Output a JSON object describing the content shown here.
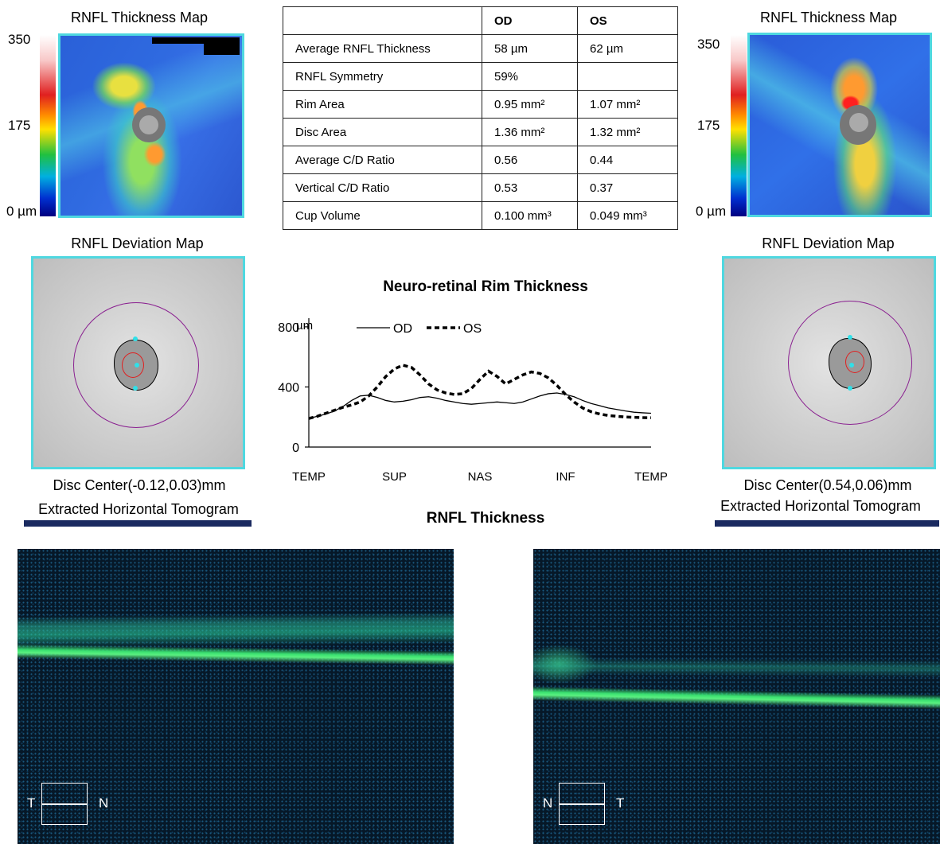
{
  "od": {
    "thickness_title": "RNFL Thickness Map",
    "scale_max": "350",
    "scale_mid": "175",
    "scale_min": "0 µm",
    "deviation_title": "RNFL Deviation Map",
    "disc_center": "Disc Center(-0.12,0.03)mm",
    "tomogram_title": "Extracted Horizontal Tomogram",
    "orient_left": "T",
    "orient_right": "N"
  },
  "os": {
    "thickness_title": "RNFL Thickness Map",
    "scale_max": "350",
    "scale_mid": "175",
    "scale_min": "0 µm",
    "deviation_title": "RNFL Deviation Map",
    "disc_center": "Disc Center(0.54,0.06)mm",
    "tomogram_title": "Extracted Horizontal Tomogram",
    "orient_left": "N",
    "orient_right": "T"
  },
  "table": {
    "headers": [
      "",
      "OD",
      "OS"
    ],
    "rows": [
      {
        "label": "Average RNFL Thickness",
        "od": "58 µm",
        "os": "62 µm"
      },
      {
        "label": "RNFL Symmetry",
        "od": "59%",
        "os": ""
      },
      {
        "label": "Rim Area",
        "od": "0.95 mm²",
        "os": "1.07 mm²"
      },
      {
        "label": "Disc Area",
        "od": "1.36 mm²",
        "os": "1.32 mm²"
      },
      {
        "label": "Average C/D Ratio",
        "od": "0.56",
        "os": "0.44"
      },
      {
        "label": "Vertical C/D Ratio",
        "od": "0.53",
        "os": "0.37"
      },
      {
        "label": "Cup Volume",
        "od": "0.100 mm³",
        "os": "0.049 mm³"
      }
    ]
  },
  "rim_chart_title": "Neuro-retinal Rim Thickness",
  "rnfl_thickness_title": "RNFL Thickness",
  "chart_data": {
    "type": "line",
    "title": "Neuro-retinal Rim Thickness",
    "ylabel": "µm",
    "xlabel": "",
    "ylim": [
      0,
      900
    ],
    "yticks": [
      "800",
      "400",
      "0"
    ],
    "ytick_values": [
      800,
      400,
      0
    ],
    "categories": [
      "TEMP",
      "SUP",
      "NAS",
      "INF",
      "TEMP"
    ],
    "x": [
      0,
      0.1,
      0.2,
      0.3,
      0.4,
      0.5,
      0.6,
      0.7,
      0.8,
      0.9,
      1.0,
      1.1,
      1.2,
      1.3,
      1.4,
      1.5,
      1.6,
      1.7,
      1.8,
      1.9,
      2.0,
      2.1,
      2.2,
      2.3,
      2.4,
      2.5,
      2.6,
      2.7,
      2.8,
      2.9,
      3.0,
      3.1,
      3.2,
      3.3,
      3.4,
      3.5,
      3.6,
      3.7,
      3.8,
      3.9,
      4.0
    ],
    "series": [
      {
        "name": "OD",
        "style": "solid",
        "values": [
          190,
          205,
          220,
          240,
          270,
          310,
          340,
          345,
          330,
          310,
          300,
          305,
          315,
          330,
          335,
          325,
          310,
          300,
          290,
          285,
          290,
          295,
          300,
          295,
          290,
          300,
          320,
          340,
          355,
          360,
          350,
          335,
          310,
          290,
          275,
          260,
          250,
          240,
          232,
          228,
          225
        ]
      },
      {
        "name": "OS",
        "style": "dashed",
        "values": [
          190,
          205,
          225,
          245,
          265,
          280,
          300,
          340,
          400,
          470,
          520,
          545,
          530,
          480,
          420,
          380,
          360,
          350,
          355,
          390,
          450,
          505,
          470,
          420,
          450,
          480,
          500,
          490,
          460,
          410,
          350,
          300,
          260,
          235,
          220,
          210,
          205,
          200,
          198,
          196,
          195
        ]
      }
    ]
  },
  "colors": {
    "frame": "#4fd8e0",
    "ring": "#8a2090",
    "cup": "#e02020",
    "oct_layer": "#2fe080"
  }
}
